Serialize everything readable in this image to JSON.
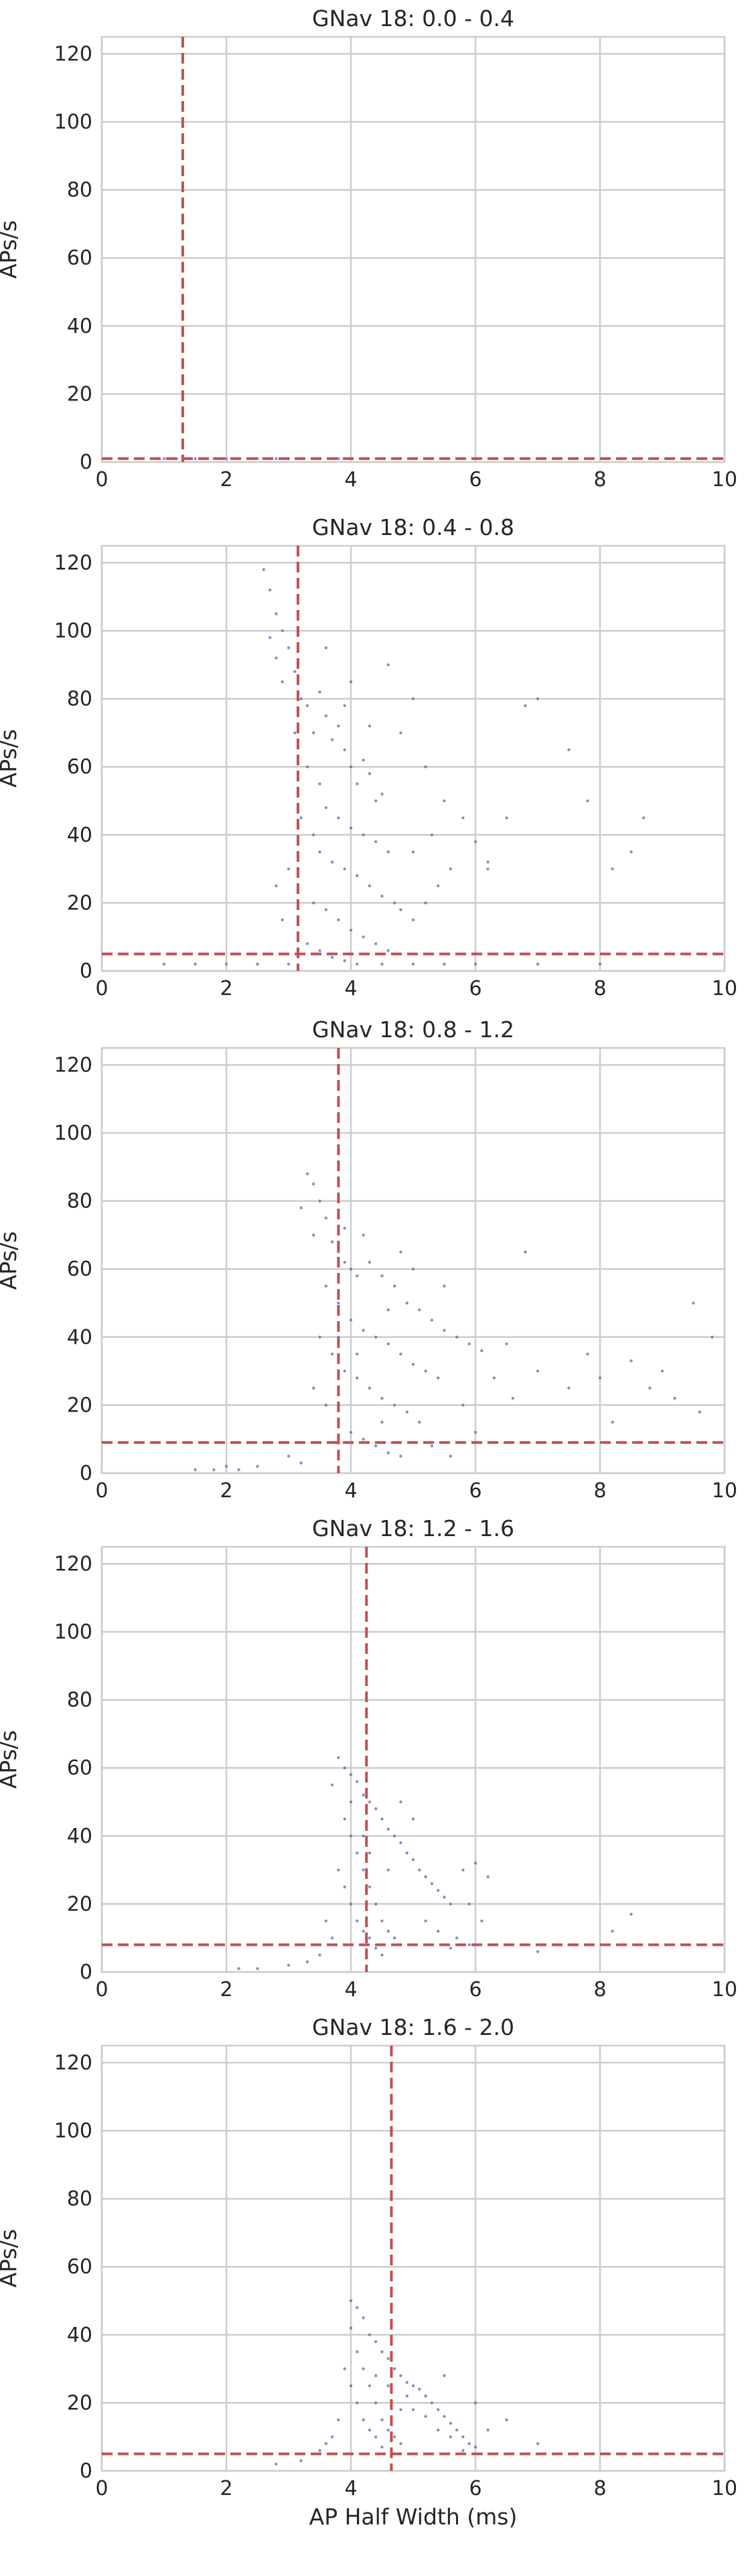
{
  "chart_data": [
    {
      "type": "scatter",
      "title": "GNav 18: 0.0 - 0.4",
      "xlabel": "",
      "ylabel": "APs/s",
      "xlim": [
        0,
        10
      ],
      "ylim": [
        0,
        125
      ],
      "xticks": [
        0,
        2,
        4,
        6,
        8,
        10
      ],
      "yticks": [
        0,
        20,
        40,
        60,
        80,
        100,
        120
      ],
      "grid": true,
      "point_color": "#4c72b0",
      "median_color": "#c44e52",
      "median_x": 1.3,
      "median_y": 1,
      "points": [
        [
          0.9,
          1
        ],
        [
          1.0,
          1
        ],
        [
          1.1,
          1
        ],
        [
          1.2,
          1
        ],
        [
          1.3,
          1
        ],
        [
          1.4,
          1
        ],
        [
          1.5,
          1
        ],
        [
          1.6,
          1
        ],
        [
          1.8,
          1
        ],
        [
          2.0,
          1
        ],
        [
          2.2,
          1
        ],
        [
          2.5,
          1
        ],
        [
          2.8,
          1
        ],
        [
          3.0,
          1
        ],
        [
          3.2,
          1
        ],
        [
          3.5,
          1
        ],
        [
          3.8,
          1
        ],
        [
          4.0,
          1
        ],
        [
          4.2,
          1
        ]
      ]
    },
    {
      "type": "scatter",
      "title": "GNav 18: 0.4 - 0.8",
      "xlabel": "",
      "ylabel": "APs/s",
      "xlim": [
        0,
        10
      ],
      "ylim": [
        0,
        125
      ],
      "xticks": [
        0,
        2,
        4,
        6,
        8,
        10
      ],
      "yticks": [
        0,
        20,
        40,
        60,
        80,
        100,
        120
      ],
      "grid": true,
      "point_color": "#4c72b0",
      "median_color": "#c44e52",
      "median_x": 3.15,
      "median_y": 5,
      "points": [
        [
          2.6,
          118
        ],
        [
          2.7,
          112
        ],
        [
          2.8,
          105
        ],
        [
          2.7,
          98
        ],
        [
          2.9,
          100
        ],
        [
          2.8,
          92
        ],
        [
          3.0,
          95
        ],
        [
          3.1,
          88
        ],
        [
          2.9,
          85
        ],
        [
          3.2,
          80
        ],
        [
          3.3,
          78
        ],
        [
          3.5,
          82
        ],
        [
          3.6,
          75
        ],
        [
          3.4,
          70
        ],
        [
          3.7,
          68
        ],
        [
          3.8,
          72
        ],
        [
          3.9,
          65
        ],
        [
          4.0,
          60
        ],
        [
          4.2,
          62
        ],
        [
          4.1,
          55
        ],
        [
          4.3,
          58
        ],
        [
          4.4,
          50
        ],
        [
          4.5,
          52
        ],
        [
          3.6,
          48
        ],
        [
          3.8,
          45
        ],
        [
          4.0,
          42
        ],
        [
          4.2,
          40
        ],
        [
          4.4,
          38
        ],
        [
          4.6,
          35
        ],
        [
          3.5,
          35
        ],
        [
          3.7,
          32
        ],
        [
          3.9,
          30
        ],
        [
          4.1,
          28
        ],
        [
          4.3,
          25
        ],
        [
          4.5,
          22
        ],
        [
          4.7,
          20
        ],
        [
          3.4,
          20
        ],
        [
          3.6,
          18
        ],
        [
          3.8,
          15
        ],
        [
          4.0,
          12
        ],
        [
          4.2,
          10
        ],
        [
          4.4,
          8
        ],
        [
          4.6,
          6
        ],
        [
          3.3,
          8
        ],
        [
          3.5,
          6
        ],
        [
          3.7,
          4
        ],
        [
          3.9,
          3
        ],
        [
          4.1,
          2
        ],
        [
          4.8,
          18
        ],
        [
          5.0,
          15
        ],
        [
          5.2,
          20
        ],
        [
          5.4,
          25
        ],
        [
          5.0,
          35
        ],
        [
          5.3,
          40
        ],
        [
          5.6,
          30
        ],
        [
          5.8,
          45
        ],
        [
          6.0,
          38
        ],
        [
          6.2,
          30
        ],
        [
          6.5,
          45
        ],
        [
          6.8,
          78
        ],
        [
          7.0,
          80
        ],
        [
          7.5,
          65
        ],
        [
          7.8,
          50
        ],
        [
          8.2,
          30
        ],
        [
          8.5,
          35
        ],
        [
          8.7,
          45
        ],
        [
          6.2,
          32
        ],
        [
          5.5,
          50
        ],
        [
          5.0,
          80
        ],
        [
          4.6,
          90
        ],
        [
          1.0,
          2
        ],
        [
          1.5,
          2
        ],
        [
          2.0,
          2
        ],
        [
          2.5,
          2
        ],
        [
          3.0,
          2
        ],
        [
          4.5,
          2
        ],
        [
          5.0,
          2
        ],
        [
          5.5,
          2
        ],
        [
          6.0,
          2
        ],
        [
          7.0,
          2
        ],
        [
          8.0,
          2
        ],
        [
          3.1,
          70
        ],
        [
          3.3,
          60
        ],
        [
          3.5,
          55
        ],
        [
          3.2,
          45
        ],
        [
          3.4,
          40
        ],
        [
          3.0,
          30
        ],
        [
          2.8,
          25
        ],
        [
          2.9,
          15
        ],
        [
          3.6,
          95
        ],
        [
          4.0,
          85
        ],
        [
          4.8,
          70
        ],
        [
          5.2,
          60
        ],
        [
          3.9,
          78
        ],
        [
          4.3,
          72
        ]
      ]
    },
    {
      "type": "scatter",
      "title": "GNav 18: 0.8 - 1.2",
      "xlabel": "",
      "ylabel": "APs/s",
      "xlim": [
        0,
        10
      ],
      "ylim": [
        0,
        125
      ],
      "xticks": [
        0,
        2,
        4,
        6,
        8,
        10
      ],
      "yticks": [
        0,
        20,
        40,
        60,
        80,
        100,
        120
      ],
      "grid": true,
      "point_color": "#4c72b0",
      "median_color": "#c44e52",
      "median_x": 3.8,
      "median_y": 9,
      "points": [
        [
          3.3,
          88
        ],
        [
          3.4,
          85
        ],
        [
          3.2,
          78
        ],
        [
          3.5,
          80
        ],
        [
          3.6,
          75
        ],
        [
          3.4,
          70
        ],
        [
          3.7,
          68
        ],
        [
          3.8,
          65
        ],
        [
          3.9,
          62
        ],
        [
          4.0,
          60
        ],
        [
          4.1,
          58
        ],
        [
          4.3,
          62
        ],
        [
          4.5,
          58
        ],
        [
          4.7,
          55
        ],
        [
          4.9,
          50
        ],
        [
          5.1,
          48
        ],
        [
          5.3,
          45
        ],
        [
          5.5,
          42
        ],
        [
          5.7,
          40
        ],
        [
          5.9,
          38
        ],
        [
          6.1,
          36
        ],
        [
          3.6,
          55
        ],
        [
          3.8,
          50
        ],
        [
          4.0,
          45
        ],
        [
          4.2,
          42
        ],
        [
          4.4,
          40
        ],
        [
          4.6,
          38
        ],
        [
          4.8,
          35
        ],
        [
          5.0,
          32
        ],
        [
          5.2,
          30
        ],
        [
          5.4,
          28
        ],
        [
          3.5,
          40
        ],
        [
          3.7,
          35
        ],
        [
          3.9,
          30
        ],
        [
          4.1,
          28
        ],
        [
          4.3,
          25
        ],
        [
          4.5,
          22
        ],
        [
          4.7,
          20
        ],
        [
          4.9,
          18
        ],
        [
          5.1,
          15
        ],
        [
          3.4,
          25
        ],
        [
          3.6,
          20
        ],
        [
          3.8,
          15
        ],
        [
          4.0,
          12
        ],
        [
          4.2,
          10
        ],
        [
          4.4,
          8
        ],
        [
          4.6,
          6
        ],
        [
          4.8,
          5
        ],
        [
          3.0,
          5
        ],
        [
          3.2,
          3
        ],
        [
          2.5,
          2
        ],
        [
          2.0,
          2
        ],
        [
          1.5,
          1
        ],
        [
          1.8,
          1
        ],
        [
          2.2,
          1
        ],
        [
          6.5,
          38
        ],
        [
          6.8,
          65
        ],
        [
          7.0,
          30
        ],
        [
          7.5,
          25
        ],
        [
          7.8,
          35
        ],
        [
          8.0,
          28
        ],
        [
          8.5,
          33
        ],
        [
          8.8,
          25
        ],
        [
          9.0,
          30
        ],
        [
          9.5,
          50
        ],
        [
          9.8,
          40
        ],
        [
          6.3,
          28
        ],
        [
          6.6,
          22
        ],
        [
          8.2,
          15
        ],
        [
          9.2,
          22
        ],
        [
          9.6,
          18
        ],
        [
          5.0,
          60
        ],
        [
          5.5,
          55
        ],
        [
          4.2,
          70
        ],
        [
          4.8,
          65
        ],
        [
          3.9,
          72
        ],
        [
          4.6,
          48
        ],
        [
          5.8,
          20
        ],
        [
          6.0,
          12
        ],
        [
          5.3,
          8
        ],
        [
          5.6,
          5
        ],
        [
          4.5,
          15
        ],
        [
          4.1,
          35
        ],
        [
          3.8,
          40
        ]
      ]
    },
    {
      "type": "scatter",
      "title": "GNav 18: 1.2 - 1.6",
      "xlabel": "",
      "ylabel": "APs/s",
      "xlim": [
        0,
        10
      ],
      "ylim": [
        0,
        125
      ],
      "xticks": [
        0,
        2,
        4,
        6,
        8,
        10
      ],
      "yticks": [
        0,
        20,
        40,
        60,
        80,
        100,
        120
      ],
      "grid": true,
      "point_color": "#4c72b0",
      "median_color": "#c44e52",
      "median_x": 4.25,
      "median_y": 8,
      "points": [
        [
          3.8,
          63
        ],
        [
          3.9,
          60
        ],
        [
          4.0,
          58
        ],
        [
          3.7,
          55
        ],
        [
          4.1,
          56
        ],
        [
          4.2,
          52
        ],
        [
          4.3,
          50
        ],
        [
          4.4,
          48
        ],
        [
          4.5,
          45
        ],
        [
          4.6,
          42
        ],
        [
          4.7,
          40
        ],
        [
          4.8,
          38
        ],
        [
          4.9,
          35
        ],
        [
          5.0,
          33
        ],
        [
          5.1,
          30
        ],
        [
          5.2,
          28
        ],
        [
          5.3,
          26
        ],
        [
          5.4,
          24
        ],
        [
          5.5,
          22
        ],
        [
          5.6,
          20
        ],
        [
          3.9,
          45
        ],
        [
          4.0,
          40
        ],
        [
          4.1,
          35
        ],
        [
          4.2,
          30
        ],
        [
          4.3,
          25
        ],
        [
          4.4,
          20
        ],
        [
          4.5,
          15
        ],
        [
          4.6,
          12
        ],
        [
          4.7,
          10
        ],
        [
          4.8,
          8
        ],
        [
          3.8,
          30
        ],
        [
          3.9,
          25
        ],
        [
          4.0,
          20
        ],
        [
          4.1,
          15
        ],
        [
          4.2,
          12
        ],
        [
          4.3,
          10
        ],
        [
          4.4,
          7
        ],
        [
          4.5,
          5
        ],
        [
          3.6,
          15
        ],
        [
          3.7,
          10
        ],
        [
          3.5,
          5
        ],
        [
          3.3,
          3
        ],
        [
          3.0,
          2
        ],
        [
          2.5,
          1
        ],
        [
          2.2,
          1
        ],
        [
          5.8,
          30
        ],
        [
          6.0,
          32
        ],
        [
          6.2,
          28
        ],
        [
          5.9,
          20
        ],
        [
          6.1,
          15
        ],
        [
          5.7,
          10
        ],
        [
          5.9,
          8
        ],
        [
          8.5,
          17
        ],
        [
          8.2,
          12
        ],
        [
          7.5,
          8
        ],
        [
          7.0,
          6
        ],
        [
          5.0,
          45
        ],
        [
          4.8,
          50
        ],
        [
          4.6,
          30
        ],
        [
          5.2,
          15
        ],
        [
          5.4,
          12
        ],
        [
          5.6,
          7
        ],
        [
          4.2,
          40
        ],
        [
          4.0,
          50
        ],
        [
          4.3,
          35
        ]
      ]
    },
    {
      "type": "scatter",
      "title": "GNav 18: 1.6 - 2.0",
      "xlabel": "AP Half Width (ms)",
      "ylabel": "APs/s",
      "xlim": [
        0,
        10
      ],
      "ylim": [
        0,
        125
      ],
      "xticks": [
        0,
        2,
        4,
        6,
        8,
        10
      ],
      "yticks": [
        0,
        20,
        40,
        60,
        80,
        100,
        120
      ],
      "grid": true,
      "point_color": "#4c72b0",
      "median_color": "#c44e52",
      "median_x": 4.65,
      "median_y": 5,
      "points": [
        [
          4.0,
          50
        ],
        [
          4.1,
          48
        ],
        [
          4.2,
          45
        ],
        [
          4.0,
          42
        ],
        [
          4.3,
          40
        ],
        [
          4.4,
          38
        ],
        [
          4.5,
          35
        ],
        [
          4.6,
          33
        ],
        [
          4.7,
          30
        ],
        [
          4.8,
          28
        ],
        [
          4.9,
          26
        ],
        [
          5.0,
          25
        ],
        [
          5.1,
          24
        ],
        [
          5.2,
          22
        ],
        [
          5.3,
          20
        ],
        [
          5.4,
          18
        ],
        [
          5.5,
          16
        ],
        [
          5.6,
          14
        ],
        [
          5.7,
          12
        ],
        [
          5.8,
          10
        ],
        [
          5.9,
          8
        ],
        [
          6.0,
          7
        ],
        [
          4.1,
          35
        ],
        [
          4.2,
          30
        ],
        [
          4.3,
          25
        ],
        [
          4.4,
          20
        ],
        [
          4.5,
          15
        ],
        [
          4.6,
          12
        ],
        [
          4.7,
          10
        ],
        [
          4.8,
          8
        ],
        [
          3.9,
          30
        ],
        [
          4.0,
          25
        ],
        [
          4.1,
          20
        ],
        [
          4.2,
          15
        ],
        [
          4.3,
          12
        ],
        [
          4.4,
          10
        ],
        [
          4.5,
          7
        ],
        [
          3.8,
          15
        ],
        [
          3.7,
          10
        ],
        [
          3.6,
          8
        ],
        [
          3.5,
          6
        ],
        [
          3.2,
          3
        ],
        [
          2.8,
          2
        ],
        [
          5.0,
          18
        ],
        [
          5.2,
          16
        ],
        [
          5.4,
          12
        ],
        [
          5.6,
          10
        ],
        [
          5.8,
          6
        ],
        [
          6.1,
          5
        ],
        [
          6.0,
          20
        ],
        [
          6.2,
          12
        ],
        [
          6.5,
          15
        ],
        [
          7.0,
          8
        ],
        [
          5.5,
          28
        ],
        [
          4.9,
          22
        ],
        [
          4.4,
          28
        ],
        [
          4.6,
          25
        ],
        [
          4.8,
          18
        ]
      ]
    }
  ]
}
